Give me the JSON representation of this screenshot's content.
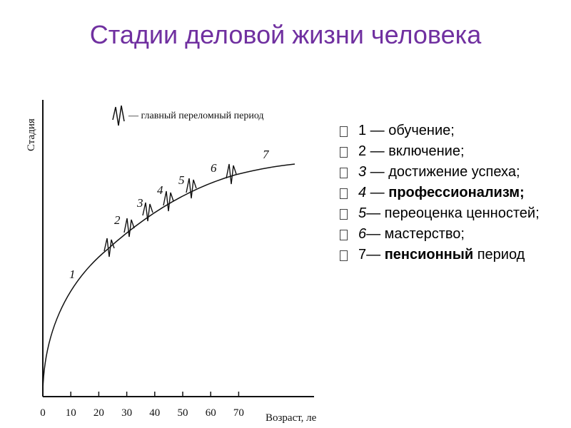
{
  "title": "Стадии деловой жизни человека",
  "figure": {
    "y_label": "Стадия",
    "x_label": "Возраст, ле",
    "legend": "— главный переломный период",
    "xticks": [
      0,
      10,
      20,
      30,
      40,
      50,
      60,
      70
    ],
    "stages": [
      "1",
      "2",
      "3",
      "4",
      "5",
      "6",
      "7"
    ]
  },
  "list": [
    [
      {
        "text": "1 — обучение;"
      }
    ],
    [
      {
        "text": "2 — включение;"
      }
    ],
    [
      {
        "text": "3",
        "style": "italic"
      },
      {
        "text": " — достижение успеха;"
      }
    ],
    [
      {
        "text": "4",
        "style": "italic"
      },
      {
        "text": " — "
      },
      {
        "text": "профессионализм;",
        "style": "bold"
      }
    ],
    [
      {
        "text": "5",
        "style": "italic"
      },
      {
        "text": "— переоценка ценностей;"
      }
    ],
    [
      {
        "text": "6",
        "style": "italic"
      },
      {
        "text": "— мастерство;"
      }
    ],
    [
      {
        "text": "7— "
      },
      {
        "text": "пенсионный",
        "style": "bold"
      },
      {
        "text": " период"
      }
    ]
  ]
}
